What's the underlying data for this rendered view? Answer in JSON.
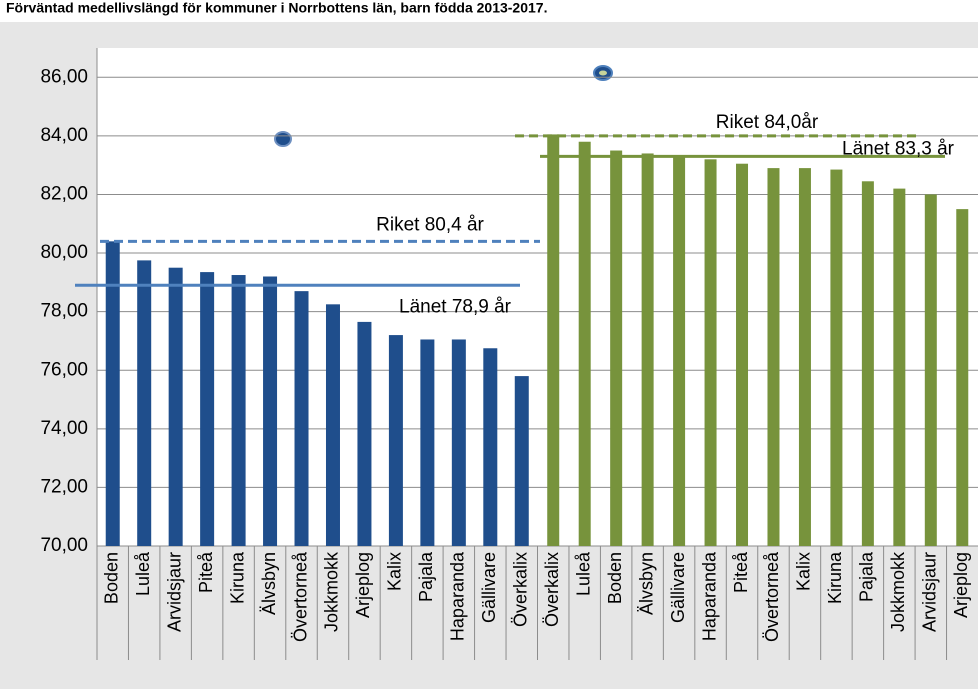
{
  "chart_data": {
    "type": "bar",
    "title": "Förväntad medellivslängd för kommuner i Norrbottens län, barn födda 2013-2017.",
    "categories": [
      "Boden",
      "Luleå",
      "Arvidsjaur",
      "Piteå",
      "Kiruna",
      "Älvsbyn",
      "Övertorneå",
      "Jokkmokk",
      "Arjeplog",
      "Kalix",
      "Pajala",
      "Haparanda",
      "Gällivare",
      "Överkalix",
      "Överkalix",
      "Luleå",
      "Boden",
      "Älvsbyn",
      "Gällivare",
      "Haparanda",
      "Piteå",
      "Övertorneå",
      "Kalix",
      "Kiruna",
      "Pajala",
      "Jokkmokk",
      "Arvidsjaur",
      "Arjeplog"
    ],
    "series": [
      {
        "color": "#1f4e8c",
        "values": [
          80.4,
          79.75,
          79.5,
          79.35,
          79.25,
          79.2,
          78.7,
          78.25,
          77.65,
          77.2,
          77.05,
          77.05,
          76.75,
          75.8,
          null,
          null,
          null,
          null,
          null,
          null,
          null,
          null,
          null,
          null,
          null,
          null,
          null,
          null
        ]
      },
      {
        "color": "#77933c",
        "values": [
          null,
          null,
          null,
          null,
          null,
          null,
          null,
          null,
          null,
          null,
          null,
          null,
          null,
          null,
          84.05,
          83.8,
          83.5,
          83.4,
          83.3,
          83.2,
          83.05,
          82.9,
          82.9,
          82.85,
          82.45,
          82.2,
          82.0,
          81.5
        ]
      }
    ],
    "reference_lines": [
      {
        "label": "Riket 80,4 år",
        "value": 80.4,
        "color": "#4f81bd",
        "dashed": true
      },
      {
        "label": "Länet 78,9 år",
        "value": 78.9,
        "color": "#4f81bd",
        "dashed": false
      },
      {
        "label": "Riket 84,0år",
        "value": 84.0,
        "color": "#77933c",
        "dashed": true
      },
      {
        "label": "Länet 83,3 år",
        "value": 83.3,
        "color": "#77933c",
        "dashed": false
      }
    ],
    "ylim": [
      70,
      87
    ],
    "yticks": [
      {
        "value": 70,
        "label": "70,00"
      },
      {
        "value": 72,
        "label": "72,00"
      },
      {
        "value": 74,
        "label": "74,00"
      },
      {
        "value": 76,
        "label": "76,00"
      },
      {
        "value": 78,
        "label": "78,00"
      },
      {
        "value": 80,
        "label": "80,00"
      },
      {
        "value": 82,
        "label": "82,00"
      },
      {
        "value": 84,
        "label": "84,00"
      },
      {
        "value": 86,
        "label": "86,00"
      }
    ],
    "grid": true
  }
}
